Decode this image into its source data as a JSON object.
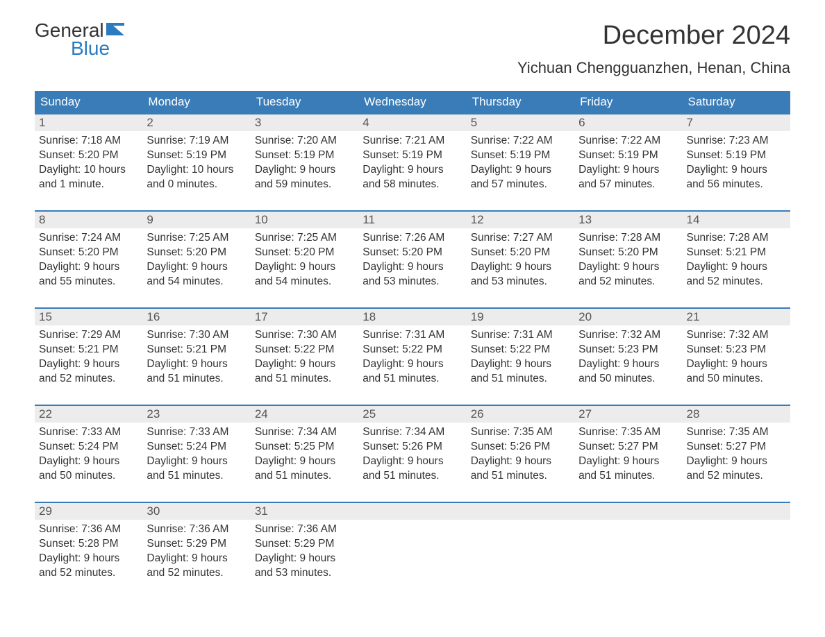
{
  "brand": {
    "word1": "General",
    "word2": "Blue"
  },
  "title": "December 2024",
  "location": "Yichuan Chengguanzhen, Henan, China",
  "colors": {
    "header_bg": "#3a7cb8",
    "daynum_bg": "#ececec",
    "week_border": "#3a7cb8",
    "brand_blue": "#2a7bbf",
    "text": "#333333",
    "background": "#ffffff"
  },
  "typography": {
    "title_fontsize": 38,
    "location_fontsize": 22,
    "dow_fontsize": 17,
    "body_fontsize": 15.5
  },
  "layout": {
    "columns": 7,
    "rows": 5
  },
  "days_of_week": [
    "Sunday",
    "Monday",
    "Tuesday",
    "Wednesday",
    "Thursday",
    "Friday",
    "Saturday"
  ],
  "weeks": [
    [
      {
        "n": "1",
        "sunrise": "Sunrise: 7:18 AM",
        "sunset": "Sunset: 5:20 PM",
        "dl1": "Daylight: 10 hours",
        "dl2": "and 1 minute."
      },
      {
        "n": "2",
        "sunrise": "Sunrise: 7:19 AM",
        "sunset": "Sunset: 5:19 PM",
        "dl1": "Daylight: 10 hours",
        "dl2": "and 0 minutes."
      },
      {
        "n": "3",
        "sunrise": "Sunrise: 7:20 AM",
        "sunset": "Sunset: 5:19 PM",
        "dl1": "Daylight: 9 hours",
        "dl2": "and 59 minutes."
      },
      {
        "n": "4",
        "sunrise": "Sunrise: 7:21 AM",
        "sunset": "Sunset: 5:19 PM",
        "dl1": "Daylight: 9 hours",
        "dl2": "and 58 minutes."
      },
      {
        "n": "5",
        "sunrise": "Sunrise: 7:22 AM",
        "sunset": "Sunset: 5:19 PM",
        "dl1": "Daylight: 9 hours",
        "dl2": "and 57 minutes."
      },
      {
        "n": "6",
        "sunrise": "Sunrise: 7:22 AM",
        "sunset": "Sunset: 5:19 PM",
        "dl1": "Daylight: 9 hours",
        "dl2": "and 57 minutes."
      },
      {
        "n": "7",
        "sunrise": "Sunrise: 7:23 AM",
        "sunset": "Sunset: 5:19 PM",
        "dl1": "Daylight: 9 hours",
        "dl2": "and 56 minutes."
      }
    ],
    [
      {
        "n": "8",
        "sunrise": "Sunrise: 7:24 AM",
        "sunset": "Sunset: 5:20 PM",
        "dl1": "Daylight: 9 hours",
        "dl2": "and 55 minutes."
      },
      {
        "n": "9",
        "sunrise": "Sunrise: 7:25 AM",
        "sunset": "Sunset: 5:20 PM",
        "dl1": "Daylight: 9 hours",
        "dl2": "and 54 minutes."
      },
      {
        "n": "10",
        "sunrise": "Sunrise: 7:25 AM",
        "sunset": "Sunset: 5:20 PM",
        "dl1": "Daylight: 9 hours",
        "dl2": "and 54 minutes."
      },
      {
        "n": "11",
        "sunrise": "Sunrise: 7:26 AM",
        "sunset": "Sunset: 5:20 PM",
        "dl1": "Daylight: 9 hours",
        "dl2": "and 53 minutes."
      },
      {
        "n": "12",
        "sunrise": "Sunrise: 7:27 AM",
        "sunset": "Sunset: 5:20 PM",
        "dl1": "Daylight: 9 hours",
        "dl2": "and 53 minutes."
      },
      {
        "n": "13",
        "sunrise": "Sunrise: 7:28 AM",
        "sunset": "Sunset: 5:20 PM",
        "dl1": "Daylight: 9 hours",
        "dl2": "and 52 minutes."
      },
      {
        "n": "14",
        "sunrise": "Sunrise: 7:28 AM",
        "sunset": "Sunset: 5:21 PM",
        "dl1": "Daylight: 9 hours",
        "dl2": "and 52 minutes."
      }
    ],
    [
      {
        "n": "15",
        "sunrise": "Sunrise: 7:29 AM",
        "sunset": "Sunset: 5:21 PM",
        "dl1": "Daylight: 9 hours",
        "dl2": "and 52 minutes."
      },
      {
        "n": "16",
        "sunrise": "Sunrise: 7:30 AM",
        "sunset": "Sunset: 5:21 PM",
        "dl1": "Daylight: 9 hours",
        "dl2": "and 51 minutes."
      },
      {
        "n": "17",
        "sunrise": "Sunrise: 7:30 AM",
        "sunset": "Sunset: 5:22 PM",
        "dl1": "Daylight: 9 hours",
        "dl2": "and 51 minutes."
      },
      {
        "n": "18",
        "sunrise": "Sunrise: 7:31 AM",
        "sunset": "Sunset: 5:22 PM",
        "dl1": "Daylight: 9 hours",
        "dl2": "and 51 minutes."
      },
      {
        "n": "19",
        "sunrise": "Sunrise: 7:31 AM",
        "sunset": "Sunset: 5:22 PM",
        "dl1": "Daylight: 9 hours",
        "dl2": "and 51 minutes."
      },
      {
        "n": "20",
        "sunrise": "Sunrise: 7:32 AM",
        "sunset": "Sunset: 5:23 PM",
        "dl1": "Daylight: 9 hours",
        "dl2": "and 50 minutes."
      },
      {
        "n": "21",
        "sunrise": "Sunrise: 7:32 AM",
        "sunset": "Sunset: 5:23 PM",
        "dl1": "Daylight: 9 hours",
        "dl2": "and 50 minutes."
      }
    ],
    [
      {
        "n": "22",
        "sunrise": "Sunrise: 7:33 AM",
        "sunset": "Sunset: 5:24 PM",
        "dl1": "Daylight: 9 hours",
        "dl2": "and 50 minutes."
      },
      {
        "n": "23",
        "sunrise": "Sunrise: 7:33 AM",
        "sunset": "Sunset: 5:24 PM",
        "dl1": "Daylight: 9 hours",
        "dl2": "and 51 minutes."
      },
      {
        "n": "24",
        "sunrise": "Sunrise: 7:34 AM",
        "sunset": "Sunset: 5:25 PM",
        "dl1": "Daylight: 9 hours",
        "dl2": "and 51 minutes."
      },
      {
        "n": "25",
        "sunrise": "Sunrise: 7:34 AM",
        "sunset": "Sunset: 5:26 PM",
        "dl1": "Daylight: 9 hours",
        "dl2": "and 51 minutes."
      },
      {
        "n": "26",
        "sunrise": "Sunrise: 7:35 AM",
        "sunset": "Sunset: 5:26 PM",
        "dl1": "Daylight: 9 hours",
        "dl2": "and 51 minutes."
      },
      {
        "n": "27",
        "sunrise": "Sunrise: 7:35 AM",
        "sunset": "Sunset: 5:27 PM",
        "dl1": "Daylight: 9 hours",
        "dl2": "and 51 minutes."
      },
      {
        "n": "28",
        "sunrise": "Sunrise: 7:35 AM",
        "sunset": "Sunset: 5:27 PM",
        "dl1": "Daylight: 9 hours",
        "dl2": "and 52 minutes."
      }
    ],
    [
      {
        "n": "29",
        "sunrise": "Sunrise: 7:36 AM",
        "sunset": "Sunset: 5:28 PM",
        "dl1": "Daylight: 9 hours",
        "dl2": "and 52 minutes."
      },
      {
        "n": "30",
        "sunrise": "Sunrise: 7:36 AM",
        "sunset": "Sunset: 5:29 PM",
        "dl1": "Daylight: 9 hours",
        "dl2": "and 52 minutes."
      },
      {
        "n": "31",
        "sunrise": "Sunrise: 7:36 AM",
        "sunset": "Sunset: 5:29 PM",
        "dl1": "Daylight: 9 hours",
        "dl2": "and 53 minutes."
      },
      null,
      null,
      null,
      null
    ]
  ]
}
